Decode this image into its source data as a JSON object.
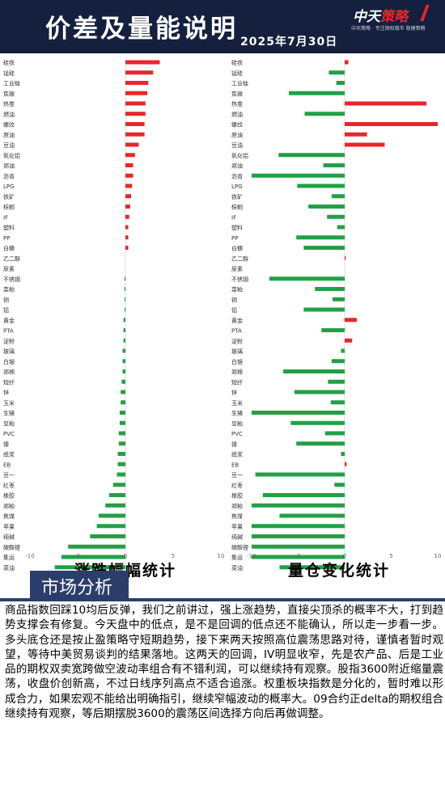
{
  "header": {
    "title": "价差及量能说明",
    "date": "2025年7月30日",
    "logo_main_a": "中天",
    "logo_main_b": "策略",
    "logo_sub": "中天策略 · 专注期权做市  稳健策略"
  },
  "colors": {
    "positive": "#e8262a",
    "negative": "#22a046",
    "header_bg": "#14203e",
    "section_bg": "#2b3e6b"
  },
  "chart_data": [
    {
      "type": "bar",
      "orientation": "horizontal",
      "title": "涨跌幅幅统计",
      "xlim": [
        -10,
        10
      ],
      "xticks": [
        "-10",
        "-5",
        "0",
        "5",
        "10"
      ],
      "categories": [
        "硅铁",
        "锰硅",
        "工业硅",
        "焦碳",
        "热卷",
        "燃油",
        "螺纹",
        "原油",
        "豆油",
        "氧化铝",
        "郑油",
        "沥青",
        "LPG",
        "铁矿",
        "棕榈",
        "IF",
        "塑料",
        "PP",
        "白糖",
        "乙二醇",
        "尿素",
        "不锈钢",
        "菜粕",
        "铜",
        "铝",
        "黄金",
        "PTA",
        "淀粉",
        "玻璃",
        "白银",
        "郑棉",
        "短纤",
        "锌",
        "玉米",
        "生猪",
        "豆粕",
        "PVC",
        "镍",
        "纸浆",
        "EB",
        "豆一",
        "红枣",
        "橡胶",
        "郑粕",
        "焦煤",
        "苹果",
        "纯碱",
        "碳酸锂",
        "集运",
        "菜油"
      ],
      "values": [
        3.6,
        2.9,
        2.4,
        2.3,
        2.1,
        2.1,
        2.0,
        2.0,
        1.4,
        1.0,
        0.8,
        0.8,
        0.7,
        0.6,
        0.5,
        0.4,
        0.3,
        0.3,
        0.3,
        0.0,
        0.0,
        -0.1,
        -0.1,
        -0.1,
        -0.1,
        -0.2,
        -0.2,
        -0.2,
        -0.3,
        -0.3,
        -0.3,
        -0.4,
        -0.5,
        -0.5,
        -0.6,
        -0.6,
        -0.7,
        -0.7,
        -0.8,
        -0.8,
        -0.9,
        -1.3,
        -1.7,
        -2.1,
        -2.8,
        -3.0,
        -3.7,
        -6.0,
        -6.7,
        -7.4
      ]
    },
    {
      "type": "bar",
      "orientation": "horizontal",
      "title": "量仓变化统计",
      "xlim": [
        -10,
        10
      ],
      "xticks": [
        "-10",
        "-5",
        "0",
        "5",
        "10"
      ],
      "categories": [
        "硅铁",
        "锰硅",
        "工业硅",
        "焦碳",
        "热卷",
        "燃油",
        "螺纹",
        "原油",
        "豆油",
        "氧化铝",
        "郑油",
        "沥青",
        "LPG",
        "铁矿",
        "棕榈",
        "IF",
        "塑料",
        "PP",
        "白糖",
        "乙二醇",
        "尿素",
        "不锈钢",
        "菜粕",
        "铜",
        "铝",
        "黄金",
        "PTA",
        "淀粉",
        "玻璃",
        "白银",
        "郑棉",
        "短纤",
        "锌",
        "玉米",
        "生猪",
        "豆粕",
        "PVC",
        "镍",
        "纸浆",
        "EB",
        "豆一",
        "红枣",
        "橡胶",
        "郑粕",
        "焦煤",
        "苹果",
        "纯碱",
        "碳酸锂",
        "集运",
        "菜油"
      ],
      "values": [
        0.4,
        -1.7,
        -0.9,
        -6.0,
        8.8,
        -4.3,
        10.0,
        2.4,
        4.3,
        -7.1,
        -2.3,
        -10.0,
        -5.1,
        -1.4,
        -3.9,
        -1.9,
        -0.8,
        -5.2,
        -4.4,
        0.1,
        0.0,
        -8.1,
        -3.2,
        -1.3,
        -4.4,
        1.3,
        -2.5,
        0.8,
        -0.4,
        -1.4,
        -6.6,
        -1.8,
        -5.4,
        -1.5,
        -10.0,
        -5.8,
        -2.1,
        -5.2,
        -0.4,
        0.2,
        -9.6,
        -1.1,
        -8.8,
        -10.0,
        -7.0,
        -10.0,
        -10.0,
        -10.0,
        -10.0,
        -7.0
      ]
    }
  ],
  "section": {
    "title": "市场分析"
  },
  "analysis_text": "商品指数回踩10均后反弹，我们之前讲过，强上涨趋势，直接尖顶杀的概率不大，打到趋势支撑会有修复。今天盘中的低点，是不是回调的低点还不能确认，所以走一步看一步。多头底仓还是按止盈策略守短期趋势，接下来两天按照高位震荡思路对待，谨慎者暂时观望，等待中美贸易谈判的结果落地。这两天的回调，IV明显收窄，先是农产品、后是工业品的期权双卖宽跨做空波动率组合有不错利润，可以继续持有观察。股指3600附近缩量震荡，收盘价创新高，不过日线序列高点不适合追涨。权重板块指数是分化的，暂时难以形成合力，如果宏观不能给出明确指引，继续窄幅波动的概率大。09合约正delta的期权组合继续持有观察，等后期摆脱3600的震荡区间选择方向后再做调整。"
}
